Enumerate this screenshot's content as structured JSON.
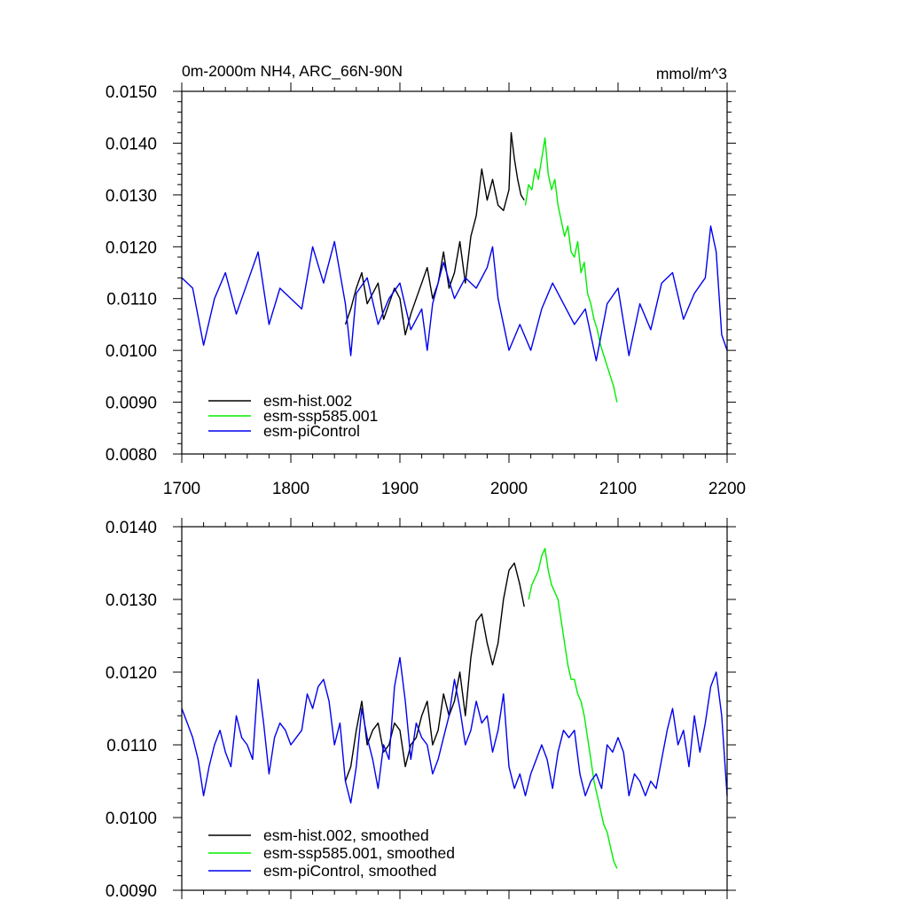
{
  "chart_data": [
    {
      "type": "line",
      "title": "0m-2000m NH4, ARC_66N-90N",
      "units": "mmol/m^3",
      "xlim": [
        1700,
        2200
      ],
      "ylim": [
        0.008,
        0.015
      ],
      "xticks": [
        "1700",
        "1800",
        "1900",
        "2000",
        "2100",
        "2200"
      ],
      "yticks": [
        "0.0080",
        "0.0090",
        "0.0100",
        "0.0110",
        "0.0120",
        "0.0130",
        "0.0140",
        "0.0150"
      ],
      "legend": "bottom-left",
      "grid": false,
      "series": [
        {
          "name": "esm-hist.002",
          "color": "#000000",
          "x": [
            1850,
            1855,
            1860,
            1865,
            1870,
            1875,
            1880,
            1885,
            1890,
            1895,
            1900,
            1905,
            1910,
            1915,
            1920,
            1925,
            1930,
            1935,
            1940,
            1945,
            1950,
            1955,
            1960,
            1965,
            1970,
            1975,
            1980,
            1985,
            1990,
            1995,
            2000,
            2002,
            2005,
            2008,
            2011,
            2014
          ],
          "y": [
            0.0105,
            0.0108,
            0.0112,
            0.0115,
            0.0109,
            0.0111,
            0.0113,
            0.0106,
            0.0109,
            0.0112,
            0.011,
            0.0103,
            0.0107,
            0.011,
            0.0113,
            0.0116,
            0.011,
            0.0113,
            0.0119,
            0.0112,
            0.0115,
            0.0121,
            0.0113,
            0.0122,
            0.0126,
            0.0135,
            0.0129,
            0.0133,
            0.0128,
            0.0127,
            0.0131,
            0.0142,
            0.0137,
            0.0133,
            0.013,
            0.0129
          ]
        },
        {
          "name": "esm-ssp585.001",
          "color": "#00ee00",
          "x": [
            2015,
            2018,
            2021,
            2024,
            2027,
            2030,
            2033,
            2036,
            2039,
            2042,
            2045,
            2048,
            2051,
            2054,
            2057,
            2060,
            2063,
            2066,
            2069,
            2072,
            2075,
            2078,
            2081,
            2084,
            2087,
            2090,
            2093,
            2096,
            2099
          ],
          "y": [
            0.0128,
            0.0132,
            0.0131,
            0.0135,
            0.0133,
            0.0137,
            0.0141,
            0.0134,
            0.0131,
            0.0133,
            0.0128,
            0.0125,
            0.0122,
            0.0124,
            0.0119,
            0.0118,
            0.0121,
            0.0115,
            0.0117,
            0.0111,
            0.0109,
            0.0106,
            0.0104,
            0.0101,
            0.0099,
            0.0097,
            0.0095,
            0.0093,
            0.009
          ]
        },
        {
          "name": "esm-piControl",
          "color": "#0000ee",
          "x": [
            1700,
            1710,
            1720,
            1730,
            1740,
            1750,
            1760,
            1770,
            1780,
            1790,
            1800,
            1810,
            1820,
            1830,
            1840,
            1850,
            1855,
            1860,
            1870,
            1880,
            1890,
            1900,
            1910,
            1920,
            1925,
            1930,
            1940,
            1950,
            1960,
            1970,
            1980,
            1985,
            1990,
            2000,
            2010,
            2020,
            2030,
            2040,
            2050,
            2060,
            2070,
            2080,
            2090,
            2100,
            2110,
            2120,
            2130,
            2140,
            2150,
            2160,
            2170,
            2180,
            2185,
            2190,
            2195,
            2200
          ],
          "y": [
            0.0114,
            0.0112,
            0.0101,
            0.011,
            0.0115,
            0.0107,
            0.0113,
            0.0119,
            0.0105,
            0.0112,
            0.011,
            0.0108,
            0.012,
            0.0113,
            0.0121,
            0.0109,
            0.0099,
            0.0111,
            0.0114,
            0.0105,
            0.011,
            0.0113,
            0.0104,
            0.0108,
            0.01,
            0.0109,
            0.0117,
            0.011,
            0.0114,
            0.0112,
            0.0116,
            0.012,
            0.011,
            0.01,
            0.0105,
            0.01,
            0.0108,
            0.0113,
            0.0109,
            0.0105,
            0.0108,
            0.0098,
            0.0109,
            0.0112,
            0.0099,
            0.0109,
            0.0104,
            0.0113,
            0.0115,
            0.0106,
            0.0111,
            0.0114,
            0.0124,
            0.0119,
            0.0103,
            0.01
          ]
        }
      ]
    },
    {
      "type": "line",
      "xlim": [
        1700,
        2200
      ],
      "ylim": [
        0.009,
        0.014
      ],
      "yticks": [
        "0.0090",
        "0.0100",
        "0.0110",
        "0.0120",
        "0.0130",
        "0.0140"
      ],
      "legend": "bottom-left",
      "grid": false,
      "series": [
        {
          "name": "esm-hist.002, smoothed",
          "color": "#000000",
          "x": [
            1850,
            1855,
            1860,
            1865,
            1870,
            1875,
            1880,
            1885,
            1890,
            1895,
            1900,
            1905,
            1910,
            1915,
            1920,
            1925,
            1930,
            1935,
            1940,
            1945,
            1950,
            1955,
            1960,
            1965,
            1970,
            1975,
            1980,
            1985,
            1990,
            1995,
            2000,
            2005,
            2010,
            2014
          ],
          "y": [
            0.0105,
            0.0107,
            0.0112,
            0.0116,
            0.011,
            0.0112,
            0.0113,
            0.0109,
            0.011,
            0.0113,
            0.0112,
            0.0107,
            0.011,
            0.0111,
            0.0114,
            0.0116,
            0.011,
            0.0112,
            0.0117,
            0.0114,
            0.0116,
            0.012,
            0.0114,
            0.0122,
            0.0127,
            0.0128,
            0.0124,
            0.0121,
            0.0124,
            0.013,
            0.0134,
            0.0135,
            0.0132,
            0.0129
          ]
        },
        {
          "name": "esm-ssp585.001, smoothed",
          "color": "#00ee00",
          "x": [
            2018,
            2021,
            2024,
            2027,
            2030,
            2033,
            2036,
            2039,
            2042,
            2045,
            2048,
            2051,
            2054,
            2057,
            2060,
            2063,
            2066,
            2069,
            2072,
            2075,
            2078,
            2081,
            2084,
            2087,
            2090,
            2093,
            2096,
            2099
          ],
          "y": [
            0.013,
            0.0132,
            0.0133,
            0.0134,
            0.0136,
            0.0137,
            0.0134,
            0.0132,
            0.0131,
            0.013,
            0.0127,
            0.0124,
            0.0121,
            0.0119,
            0.0119,
            0.0117,
            0.0116,
            0.0114,
            0.0111,
            0.0108,
            0.0105,
            0.0103,
            0.0101,
            0.0099,
            0.0098,
            0.0096,
            0.0094,
            0.0093
          ]
        },
        {
          "name": "esm-piControl, smoothed",
          "color": "#0000ee",
          "x": [
            1700,
            1705,
            1710,
            1715,
            1720,
            1725,
            1730,
            1735,
            1740,
            1745,
            1750,
            1755,
            1760,
            1765,
            1770,
            1775,
            1780,
            1785,
            1790,
            1795,
            1800,
            1805,
            1810,
            1815,
            1820,
            1825,
            1830,
            1835,
            1840,
            1845,
            1850,
            1855,
            1860,
            1865,
            1870,
            1875,
            1880,
            1885,
            1890,
            1895,
            1900,
            1905,
            1910,
            1915,
            1920,
            1925,
            1930,
            1935,
            1940,
            1945,
            1950,
            1955,
            1960,
            1965,
            1970,
            1975,
            1980,
            1985,
            1990,
            1995,
            2000,
            2005,
            2010,
            2015,
            2020,
            2025,
            2030,
            2035,
            2040,
            2045,
            2050,
            2055,
            2060,
            2065,
            2070,
            2075,
            2080,
            2085,
            2090,
            2095,
            2100,
            2105,
            2110,
            2115,
            2120,
            2125,
            2130,
            2135,
            2140,
            2145,
            2150,
            2155,
            2160,
            2165,
            2170,
            2175,
            2180,
            2185,
            2190,
            2195,
            2200
          ],
          "y": [
            0.0115,
            0.0113,
            0.0111,
            0.0108,
            0.0103,
            0.0107,
            0.011,
            0.0112,
            0.0109,
            0.0107,
            0.0114,
            0.0111,
            0.011,
            0.0108,
            0.0119,
            0.0113,
            0.0106,
            0.0111,
            0.0113,
            0.0112,
            0.011,
            0.0111,
            0.0112,
            0.0117,
            0.0115,
            0.0118,
            0.0119,
            0.0116,
            0.011,
            0.0113,
            0.0105,
            0.0102,
            0.0107,
            0.0115,
            0.0111,
            0.0108,
            0.0104,
            0.011,
            0.0108,
            0.0118,
            0.0122,
            0.0116,
            0.0108,
            0.0113,
            0.0111,
            0.011,
            0.0106,
            0.0108,
            0.0111,
            0.0114,
            0.0119,
            0.0115,
            0.011,
            0.0112,
            0.0116,
            0.0113,
            0.0114,
            0.0109,
            0.0112,
            0.0117,
            0.0107,
            0.0104,
            0.0106,
            0.0103,
            0.0106,
            0.0108,
            0.011,
            0.0108,
            0.0104,
            0.0109,
            0.0112,
            0.0111,
            0.0112,
            0.0106,
            0.0103,
            0.0105,
            0.0106,
            0.0104,
            0.011,
            0.0109,
            0.0111,
            0.0109,
            0.0103,
            0.0106,
            0.0105,
            0.0103,
            0.0105,
            0.0104,
            0.0108,
            0.0112,
            0.0115,
            0.011,
            0.0112,
            0.0107,
            0.0114,
            0.0109,
            0.0113,
            0.0118,
            0.012,
            0.0114,
            0.0103
          ]
        }
      ]
    }
  ]
}
